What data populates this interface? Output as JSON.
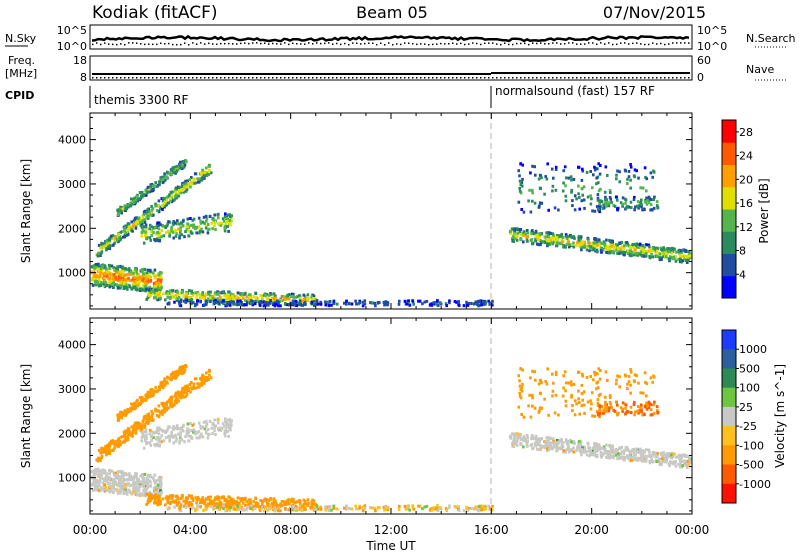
{
  "header": {
    "radar": "Kodiak (fitACF)",
    "beam": "Beam 05",
    "date": "07/Nov/2015"
  },
  "noise_panel": {
    "left_label": "N.Sky",
    "right_label": "N.Search",
    "left_tick_top": "10^5",
    "left_tick_bottom": "10^0",
    "right_tick_top": "10^5",
    "right_tick_bottom": "10^0"
  },
  "freq_panel": {
    "left_label_line1": "Freq.",
    "left_label_line2": "[MHz]",
    "left_tick_top": "18",
    "left_tick_bottom": "8",
    "right_label": "Nave",
    "right_tick_top": "60",
    "right_tick_bottom": "0"
  },
  "cpid": {
    "label": "CPID",
    "programs": [
      {
        "name": "themis 3300 RF",
        "start_hour": 0
      },
      {
        "name": "normalsound (fast) 157 RF",
        "start_hour": 16
      }
    ]
  },
  "colors": {
    "power_scale": [
      "#0000ff",
      "#1f4ea0",
      "#2b8a5e",
      "#55b54a",
      "#e0e000",
      "#ffa000",
      "#ff5a00",
      "#ff0000"
    ],
    "velocity_scale": [
      "#1e3cff",
      "#2c5fa0",
      "#2d8a55",
      "#6cc640",
      "#c8c8c8",
      "#ffc020",
      "#ff9a00",
      "#ff5a00",
      "#ff1000"
    ],
    "ground_scatter": "#c8c8c4"
  },
  "chart_data": [
    {
      "type": "heatmap",
      "title": "Power",
      "ylabel": "Slant Range [km]",
      "xlabel": "Time UT",
      "x_range_hours": [
        0,
        24
      ],
      "ylim": [
        180,
        4600
      ],
      "y_ticks": [
        1000,
        2000,
        3000,
        4000
      ],
      "x_tick_labels": [
        "00:00",
        "04:00",
        "08:00",
        "12:00",
        "16:00",
        "20:00",
        "00:00"
      ],
      "colorbar_label": "Power [dB]",
      "colorbar_ticks": [
        4,
        8,
        12,
        16,
        20,
        24,
        28
      ],
      "colorbar_range": [
        0,
        30
      ],
      "features": [
        {
          "hours": [
            0.0,
            2.8
          ],
          "range_km": [
            700,
            1300
          ],
          "peak_dB": 24
        },
        {
          "hours": [
            0.0,
            5.5
          ],
          "range_km": [
            1500,
            3500
          ],
          "peak_dB": 20
        },
        {
          "hours": [
            2.0,
            9.0
          ],
          "range_km": [
            350,
            800
          ],
          "peak_dB": 22
        },
        {
          "hours": [
            16.7,
            23.9
          ],
          "range_km": [
            1200,
            2100
          ],
          "peak_dB": 20
        },
        {
          "hours": [
            17.0,
            22.5
          ],
          "range_km": [
            2300,
            3500
          ],
          "peak_dB": 14
        }
      ]
    },
    {
      "type": "heatmap",
      "title": "Velocity",
      "ylabel": "Slant Range [km]",
      "xlabel": "Time UT",
      "x_range_hours": [
        0,
        24
      ],
      "ylim": [
        180,
        4600
      ],
      "y_ticks": [
        1000,
        2000,
        3000,
        4000
      ],
      "x_tick_labels": [
        "00:00",
        "04:00",
        "08:00",
        "12:00",
        "16:00",
        "20:00",
        "00:00"
      ],
      "colorbar_label": "Velocity [m s^-1]",
      "colorbar_ticks": [
        1000,
        500,
        100,
        25,
        -25,
        -100,
        -500,
        -1000
      ],
      "features": [
        {
          "hours": [
            0.0,
            3.0
          ],
          "range_km": [
            700,
            2000
          ],
          "velocity": "ground scatter"
        },
        {
          "hours": [
            0.8,
            5.0
          ],
          "range_km": [
            1000,
            3800
          ],
          "velocity_ms": -250
        },
        {
          "hours": [
            16.8,
            23.9
          ],
          "range_km": [
            1200,
            1900
          ],
          "velocity": "ground scatter"
        },
        {
          "hours": [
            19.5,
            22.5
          ],
          "range_km": [
            2400,
            3200
          ],
          "velocity_ms": -500
        }
      ]
    }
  ]
}
